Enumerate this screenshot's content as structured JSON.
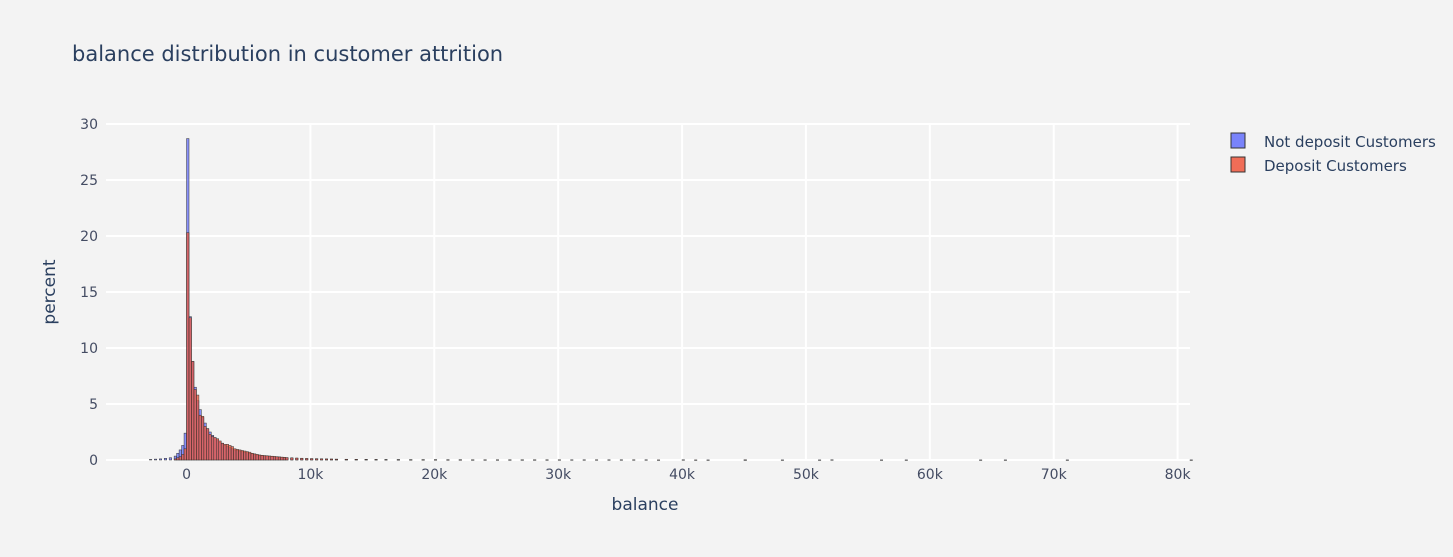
{
  "chart_data": {
    "type": "bar",
    "title": "balance distribution in customer attrition",
    "xlabel": "balance",
    "ylabel": "percent",
    "xlim": [
      -6500,
      81000
    ],
    "ylim": [
      0,
      30
    ],
    "x_ticks": [
      {
        "value": 0,
        "label": "0"
      },
      {
        "value": 10000,
        "label": "10k"
      },
      {
        "value": 20000,
        "label": "20k"
      },
      {
        "value": 30000,
        "label": "30k"
      },
      {
        "value": 40000,
        "label": "40k"
      },
      {
        "value": 50000,
        "label": "50k"
      },
      {
        "value": 60000,
        "label": "60k"
      },
      {
        "value": 70000,
        "label": "70k"
      },
      {
        "value": 80000,
        "label": "80k"
      }
    ],
    "y_ticks": [
      {
        "value": 0,
        "label": "0"
      },
      {
        "value": 5,
        "label": "5"
      },
      {
        "value": 10,
        "label": "10"
      },
      {
        "value": 15,
        "label": "15"
      },
      {
        "value": 20,
        "label": "20"
      },
      {
        "value": 25,
        "label": "25"
      },
      {
        "value": 30,
        "label": "30"
      }
    ],
    "grid": true,
    "legend_position": "top-right",
    "bin_width": 200,
    "series": [
      {
        "name": "Not deposit Customers",
        "color": "#636efa",
        "bins": [
          [
            -3000,
            0.05
          ],
          [
            -2600,
            0.08
          ],
          [
            -2200,
            0.1
          ],
          [
            -1800,
            0.15
          ],
          [
            -1400,
            0.2
          ],
          [
            -1000,
            0.35
          ],
          [
            -800,
            0.6
          ],
          [
            -600,
            0.9
          ],
          [
            -400,
            1.3
          ],
          [
            -200,
            2.4
          ],
          [
            0,
            28.7
          ],
          [
            200,
            12.8
          ],
          [
            400,
            8.8
          ],
          [
            600,
            6.5
          ],
          [
            800,
            5.3
          ],
          [
            1000,
            4.5
          ],
          [
            1200,
            3.8
          ],
          [
            1400,
            3.3
          ],
          [
            1600,
            2.8
          ],
          [
            1800,
            2.5
          ],
          [
            2000,
            2.2
          ],
          [
            2200,
            2.0
          ],
          [
            2400,
            1.8
          ],
          [
            2600,
            1.6
          ],
          [
            2800,
            1.5
          ],
          [
            3000,
            1.3
          ],
          [
            3200,
            1.2
          ],
          [
            3400,
            1.1
          ],
          [
            3600,
            1.0
          ],
          [
            3800,
            0.9
          ],
          [
            4000,
            0.85
          ],
          [
            4200,
            0.8
          ],
          [
            4400,
            0.75
          ],
          [
            4600,
            0.7
          ],
          [
            4800,
            0.65
          ],
          [
            5000,
            0.6
          ],
          [
            5200,
            0.55
          ],
          [
            5400,
            0.5
          ],
          [
            5600,
            0.45
          ],
          [
            5800,
            0.4
          ],
          [
            6000,
            0.38
          ],
          [
            6200,
            0.36
          ],
          [
            6400,
            0.34
          ],
          [
            6600,
            0.32
          ],
          [
            6800,
            0.3
          ],
          [
            7000,
            0.28
          ],
          [
            7200,
            0.26
          ],
          [
            7400,
            0.24
          ],
          [
            7600,
            0.22
          ],
          [
            7800,
            0.2
          ],
          [
            8000,
            0.19
          ],
          [
            8400,
            0.17
          ],
          [
            8800,
            0.15
          ],
          [
            9200,
            0.13
          ],
          [
            9600,
            0.12
          ],
          [
            10000,
            0.11
          ],
          [
            10400,
            0.1
          ],
          [
            10800,
            0.09
          ],
          [
            11200,
            0.08
          ],
          [
            11600,
            0.08
          ],
          [
            12000,
            0.07
          ],
          [
            12800,
            0.06
          ],
          [
            13600,
            0.05
          ],
          [
            14400,
            0.05
          ],
          [
            15200,
            0.04
          ],
          [
            16000,
            0.04
          ],
          [
            17000,
            0.03
          ],
          [
            18000,
            0.03
          ],
          [
            19000,
            0.03
          ],
          [
            20000,
            0.03
          ],
          [
            21000,
            0.02
          ],
          [
            22000,
            0.02
          ],
          [
            23000,
            0.02
          ],
          [
            24000,
            0.02
          ],
          [
            25000,
            0.02
          ],
          [
            26000,
            0.02
          ],
          [
            27000,
            0.02
          ],
          [
            28000,
            0.02
          ],
          [
            29000,
            0.02
          ],
          [
            31000,
            0.02
          ],
          [
            32000,
            0.02
          ],
          [
            34000,
            0.02
          ],
          [
            35000,
            0.02
          ],
          [
            37000,
            0.02
          ],
          [
            40000,
            0.02
          ],
          [
            42000,
            0.01
          ],
          [
            45000,
            0.02
          ],
          [
            48000,
            0.01
          ],
          [
            51000,
            0.01
          ],
          [
            52000,
            0.02
          ],
          [
            56000,
            0.01
          ],
          [
            58000,
            0.01
          ],
          [
            64000,
            0.01
          ],
          [
            66000,
            0.01
          ],
          [
            71000,
            0.01
          ],
          [
            81000,
            0.01
          ]
        ]
      },
      {
        "name": "Deposit Customers",
        "color": "#ef553b",
        "bins": [
          [
            -1000,
            0.1
          ],
          [
            -800,
            0.2
          ],
          [
            -600,
            0.3
          ],
          [
            -400,
            0.5
          ],
          [
            -200,
            1.0
          ],
          [
            0,
            20.3
          ],
          [
            200,
            12.7
          ],
          [
            400,
            8.8
          ],
          [
            600,
            6.3
          ],
          [
            800,
            5.8
          ],
          [
            1000,
            4.0
          ],
          [
            1200,
            3.9
          ],
          [
            1400,
            3.0
          ],
          [
            1600,
            2.8
          ],
          [
            1800,
            2.3
          ],
          [
            2000,
            2.1
          ],
          [
            2200,
            2.0
          ],
          [
            2400,
            1.9
          ],
          [
            2600,
            1.7
          ],
          [
            2800,
            1.5
          ],
          [
            3000,
            1.4
          ],
          [
            3200,
            1.4
          ],
          [
            3400,
            1.3
          ],
          [
            3600,
            1.2
          ],
          [
            3800,
            1.0
          ],
          [
            4000,
            0.95
          ],
          [
            4200,
            0.9
          ],
          [
            4400,
            0.85
          ],
          [
            4600,
            0.8
          ],
          [
            4800,
            0.75
          ],
          [
            5000,
            0.7
          ],
          [
            5200,
            0.6
          ],
          [
            5400,
            0.55
          ],
          [
            5600,
            0.5
          ],
          [
            5800,
            0.45
          ],
          [
            6000,
            0.42
          ],
          [
            6200,
            0.4
          ],
          [
            6400,
            0.38
          ],
          [
            6600,
            0.36
          ],
          [
            6800,
            0.34
          ],
          [
            7000,
            0.32
          ],
          [
            7200,
            0.3
          ],
          [
            7400,
            0.28
          ],
          [
            7600,
            0.26
          ],
          [
            7800,
            0.24
          ],
          [
            8000,
            0.22
          ],
          [
            8400,
            0.2
          ],
          [
            8800,
            0.18
          ],
          [
            9200,
            0.16
          ],
          [
            9600,
            0.14
          ],
          [
            10000,
            0.13
          ],
          [
            10400,
            0.12
          ],
          [
            10800,
            0.11
          ],
          [
            11200,
            0.1
          ],
          [
            11600,
            0.09
          ],
          [
            12000,
            0.08
          ],
          [
            12800,
            0.07
          ],
          [
            13600,
            0.06
          ],
          [
            14400,
            0.05
          ],
          [
            15200,
            0.05
          ],
          [
            16000,
            0.04
          ],
          [
            17000,
            0.04
          ],
          [
            18000,
            0.03
          ],
          [
            19000,
            0.03
          ],
          [
            20000,
            0.03
          ],
          [
            21000,
            0.03
          ],
          [
            22000,
            0.03
          ],
          [
            23000,
            0.02
          ],
          [
            24000,
            0.02
          ],
          [
            25000,
            0.02
          ],
          [
            26000,
            0.02
          ],
          [
            27000,
            0.02
          ],
          [
            28000,
            0.02
          ],
          [
            29000,
            0.02
          ],
          [
            30000,
            0.02
          ],
          [
            33000,
            0.02
          ],
          [
            36000,
            0.02
          ],
          [
            38000,
            0.01
          ],
          [
            41000,
            0.01
          ],
          [
            45000,
            0.01
          ]
        ]
      }
    ]
  }
}
